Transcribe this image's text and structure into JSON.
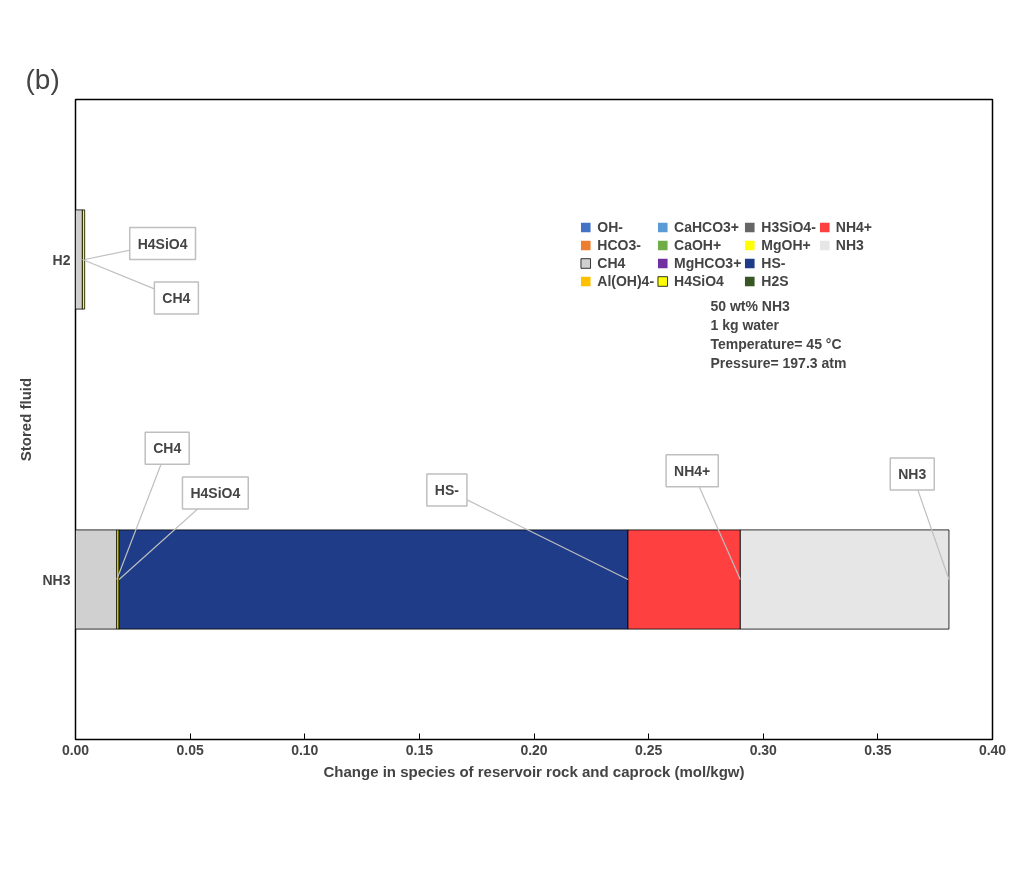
{
  "chart_data": {
    "type": "bar",
    "orientation": "horizontal",
    "stacked": true,
    "xlabel": "Change in species of reservoir rock and caprock (mol/kgw)",
    "ylabel": "Stored fluid",
    "categories": [
      "H2",
      "NH3"
    ],
    "xlim": [
      0,
      0.4
    ],
    "xticks": [
      {
        "value": 0,
        "label": "0.00"
      },
      {
        "value": 0.05,
        "label": "0.05"
      },
      {
        "value": 0.1,
        "label": "0.10"
      },
      {
        "value": 0.15,
        "label": "0.15"
      },
      {
        "value": 0.2,
        "label": "0.20"
      },
      {
        "value": 0.25,
        "label": "0.25"
      },
      {
        "value": 0.3,
        "label": "0.30"
      },
      {
        "value": 0.35,
        "label": "0.35"
      },
      {
        "value": 0.4,
        "label": "0.40"
      }
    ],
    "grid": false,
    "legend": "top right",
    "series": [
      {
        "name": "OH-",
        "color": "#4472c4",
        "values": [
          0,
          0
        ]
      },
      {
        "name": "HCO3-",
        "color": "#ed7d31",
        "values": [
          0,
          0
        ]
      },
      {
        "name": "CH4",
        "color": "#d0d0d0",
        "values": [
          0.003,
          0.018
        ]
      },
      {
        "name": "Al(OH)4-",
        "color": "#ffc000",
        "values": [
          0,
          0
        ]
      },
      {
        "name": "CaHCO3+",
        "color": "#5b9bd5",
        "values": [
          0,
          0
        ]
      },
      {
        "name": "CaOH+",
        "color": "#70ad47",
        "values": [
          0,
          0
        ]
      },
      {
        "name": "MgHCO3+",
        "color": "#7030a0",
        "values": [
          0,
          0
        ]
      },
      {
        "name": "H4SiO4",
        "color": "#ffff00",
        "values": [
          0.001,
          0.001
        ]
      },
      {
        "name": "H3SiO4-",
        "color": "#666666",
        "values": [
          0,
          0
        ]
      },
      {
        "name": "MgOH+",
        "color": "#ffff00",
        "values": [
          0,
          0
        ]
      },
      {
        "name": "HS-",
        "color": "#1f3c88",
        "values": [
          0,
          0.222
        ]
      },
      {
        "name": "H2S",
        "color": "#375623",
        "values": [
          0,
          0
        ]
      },
      {
        "name": "NH4+",
        "color": "#ff4040",
        "values": [
          0,
          0.049
        ]
      },
      {
        "name": "NH3",
        "color": "#e6e6e6",
        "values": [
          0,
          0.091
        ]
      }
    ],
    "annotations": [
      {
        "text": "CH4",
        "x": 0.003,
        "y": "H2"
      },
      {
        "text": "H4SiO4",
        "x": 0.004,
        "y": "H2"
      },
      {
        "text": "CH4",
        "x": 0.018,
        "y": "NH3"
      },
      {
        "text": "H4SiO4",
        "x": 0.019,
        "y": "NH3"
      },
      {
        "text": "HS-",
        "x": 0.241,
        "y": "NH3"
      },
      {
        "text": "NH4+",
        "x": 0.29,
        "y": "NH3"
      },
      {
        "text": "NH3",
        "x": 0.381,
        "y": "NH3"
      },
      "50 wt% NH3\n1 kg water\nTemperature= 45 °C\nPressure= 197.3 atm",
      "(b)"
    ]
  }
}
